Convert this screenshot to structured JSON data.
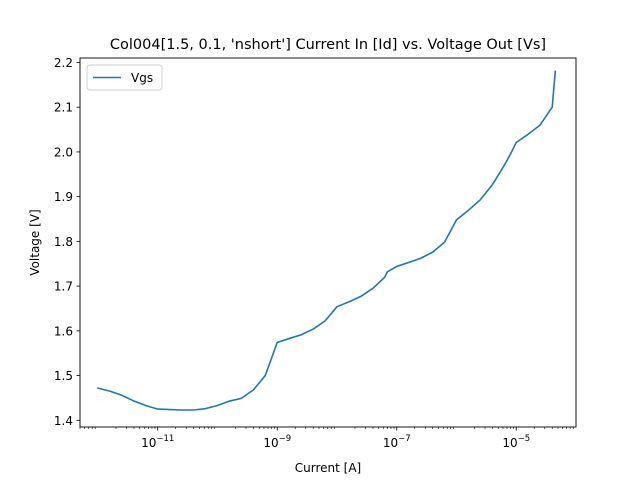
{
  "chart_data": {
    "type": "line",
    "title": "Col004[1.5, 0.1, 'nshort'] Current In [Id] vs. Voltage Out [Vs]",
    "xlabel": "Current [A]",
    "ylabel": "Voltage [V]",
    "xscale": "log",
    "xlim": [
      5e-13,
      0.0001
    ],
    "ylim": [
      1.385,
      2.21
    ],
    "x_ticks": [
      {
        "value": 1e-11,
        "base": "10",
        "exp": "−11"
      },
      {
        "value": 1e-09,
        "base": "10",
        "exp": "−9"
      },
      {
        "value": 1e-07,
        "base": "10",
        "exp": "−7"
      },
      {
        "value": 1e-05,
        "base": "10",
        "exp": "−5"
      }
    ],
    "y_ticks": [
      "1.4",
      "1.5",
      "1.6",
      "1.7",
      "1.8",
      "1.9",
      "2.0",
      "2.1",
      "2.2"
    ],
    "grid": false,
    "legend_position": "top-left",
    "series": [
      {
        "name": "Vgs",
        "color": "#1f77b4",
        "x": [
          1e-12,
          1.6e-12,
          2.5e-12,
          4e-12,
          6.3e-12,
          1e-11,
          1.6e-11,
          2.5e-11,
          4e-11,
          6.3e-11,
          1e-10,
          1.6e-10,
          2.5e-10,
          4e-10,
          6.3e-10,
          1e-09,
          1.6e-09,
          2.5e-09,
          4e-09,
          6.3e-09,
          1e-08,
          1.6e-08,
          2.5e-08,
          4e-08,
          6.3e-08,
          7e-08,
          1e-07,
          1.6e-07,
          2.5e-07,
          4e-07,
          6.3e-07,
          1e-06,
          1.6e-06,
          2.5e-06,
          4e-06,
          6.3e-06,
          8e-06,
          1e-05,
          1.6e-05,
          2.5e-05,
          4e-05,
          4.5e-05
        ],
        "y": [
          1.472,
          1.465,
          1.456,
          1.443,
          1.433,
          1.425,
          1.424,
          1.423,
          1.423,
          1.426,
          1.433,
          1.443,
          1.449,
          1.468,
          1.5,
          1.574,
          1.583,
          1.591,
          1.604,
          1.622,
          1.654,
          1.665,
          1.677,
          1.695,
          1.72,
          1.732,
          1.744,
          1.753,
          1.762,
          1.776,
          1.798,
          1.848,
          1.87,
          1.893,
          1.927,
          1.97,
          1.995,
          2.021,
          2.04,
          2.06,
          2.1,
          2.18
        ]
      }
    ]
  }
}
